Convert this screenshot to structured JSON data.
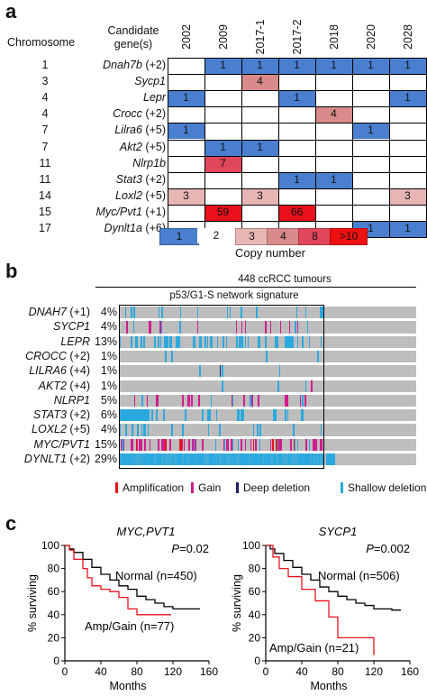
{
  "panel_a": {
    "label": "a",
    "chromosome_header": "Chromosome",
    "candidate_header": [
      "Candidate",
      "gene(s)"
    ],
    "samples": [
      "2002",
      "2009",
      "2017-1",
      "2017-2",
      "2018",
      "2020",
      "2028"
    ],
    "rows": [
      {
        "chrom": "1",
        "gene": "Dnah7b",
        "suffix": " (+2)",
        "cells": [
          null,
          "1",
          "1",
          "1",
          "1",
          "1",
          "1"
        ]
      },
      {
        "chrom": "3",
        "gene": "Sycp1",
        "suffix": "",
        "cells": [
          null,
          null,
          "4",
          null,
          null,
          null,
          null
        ]
      },
      {
        "chrom": "4",
        "gene": "Lepr",
        "suffix": "",
        "cells": [
          "1",
          null,
          null,
          "1",
          null,
          null,
          "1"
        ]
      },
      {
        "chrom": "4",
        "gene": "Crocc",
        "suffix": " (+2)",
        "cells": [
          null,
          null,
          null,
          null,
          "4",
          null,
          null
        ]
      },
      {
        "chrom": "7",
        "gene": "Lilra6",
        "suffix": " (+5)",
        "cells": [
          "1",
          null,
          null,
          null,
          null,
          "1",
          null
        ]
      },
      {
        "chrom": "7",
        "gene": "Akt2",
        "suffix": " (+5)",
        "cells": [
          null,
          "1",
          "1",
          null,
          null,
          null,
          null
        ]
      },
      {
        "chrom": "11",
        "gene": "Nlrp1b",
        "suffix": "",
        "cells": [
          null,
          "7",
          null,
          null,
          null,
          null,
          null
        ]
      },
      {
        "chrom": "11",
        "gene": "Stat3",
        "suffix": " (+2)",
        "cells": [
          null,
          null,
          null,
          "1",
          "1",
          null,
          null
        ]
      },
      {
        "chrom": "14",
        "gene": "Loxl2",
        "suffix": " (+5)",
        "cells": [
          "3",
          null,
          "3",
          null,
          null,
          null,
          "3"
        ]
      },
      {
        "chrom": "15",
        "gene": "Myc/Pvt1",
        "suffix": " (+1)",
        "cells": [
          null,
          "59",
          null,
          "66",
          null,
          null,
          null
        ]
      },
      {
        "chrom": "17",
        "gene": "Dynlt1a",
        "suffix": " (+6)",
        "cells": [
          null,
          null,
          null,
          null,
          null,
          "1",
          "1"
        ]
      }
    ],
    "legend": [
      "1",
      "2",
      "3",
      "4",
      "8",
      ">10"
    ],
    "legend_title": "Copy number",
    "colors": {
      "1": "#4a7fcf",
      "2": "#ffffff",
      "3": "#e8b5b5",
      "4": "#d98a8a",
      "7": "#e0465c",
      "8": "#e0465c",
      "59": "#e8111b",
      "66": "#e8111b",
      ">10": "#ee1111"
    }
  },
  "panel_b": {
    "label": "b",
    "cohort": "448 ccRCC tumours",
    "signature": "p53/G1-S network signature",
    "rows": [
      {
        "gene": "DNAH7",
        "suffix": " (+1)",
        "pct": "4%"
      },
      {
        "gene": "SYCP1",
        "suffix": "",
        "pct": "4%"
      },
      {
        "gene": "LEPR",
        "suffix": "",
        "pct": "13%"
      },
      {
        "gene": "CROCC",
        "suffix": " (+2)",
        "pct": "1%"
      },
      {
        "gene": "LILRA6",
        "suffix": " (+4)",
        "pct": "1%"
      },
      {
        "gene": "AKT2",
        "suffix": " (+4)",
        "pct": "1%"
      },
      {
        "gene": "NLRP1",
        "suffix": "",
        "pct": "5%"
      },
      {
        "gene": "STAT3",
        "suffix": " (+2)",
        "pct": "6%"
      },
      {
        "gene": "LOXL2",
        "suffix": " (+5)",
        "pct": "4%"
      },
      {
        "gene": "MYC/PVT1",
        "suffix": "",
        "pct": "15%"
      },
      {
        "gene": "DYNLT1",
        "suffix": " (+2)",
        "pct": "29%"
      }
    ],
    "legend": [
      {
        "label": "Amplification",
        "color": "#e8111b"
      },
      {
        "label": "Gain",
        "color": "#d21c8c"
      },
      {
        "label": "Deep deletion",
        "color": "#1d1b6b"
      },
      {
        "label": "Shallow deletion",
        "color": "#29a9df"
      }
    ],
    "colors": {
      "background": "#bdbdbd",
      "gain": "#d21c8c",
      "shallow": "#29a9df",
      "deep": "#1d1b6b",
      "amp": "#e8111b"
    }
  },
  "panel_c": {
    "label": "c",
    "ylabel": "% surviving",
    "xlabel": "Months",
    "plots": [
      {
        "title": "MYC,PVT1",
        "p_label": "P",
        "p_value": "=0.02",
        "normal_label": "Normal (n=450)",
        "amp_label": "Amp/Gain (n=77)"
      },
      {
        "title": "SYCP1",
        "p_label": "P",
        "p_value": "=0.002",
        "normal_label": "Normal (n=506)",
        "amp_label": "Amp/Gain (n=21)"
      }
    ]
  },
  "chart_data": [
    {
      "type": "line",
      "title": "MYC,PVT1",
      "xlabel": "Months",
      "ylabel": "% surviving",
      "xlim": [
        0,
        160
      ],
      "ylim": [
        0,
        100
      ],
      "xticks": [
        0,
        40,
        80,
        120,
        160
      ],
      "yticks": [
        0,
        20,
        40,
        60,
        80,
        100
      ],
      "series": [
        {
          "name": "Normal (n=450)",
          "color": "#000000",
          "x": [
            0,
            5,
            10,
            20,
            30,
            40,
            50,
            60,
            70,
            80,
            90,
            100,
            110,
            120,
            140,
            150
          ],
          "y": [
            100,
            97,
            94,
            88,
            81,
            75,
            70,
            65,
            62,
            56,
            53,
            50,
            47,
            45,
            45,
            45
          ]
        },
        {
          "name": "Amp/Gain (n=77)",
          "color": "#e8111b",
          "x": [
            0,
            5,
            10,
            20,
            25,
            30,
            40,
            50,
            60,
            70,
            80,
            90,
            100,
            110,
            118
          ],
          "y": [
            100,
            96,
            88,
            80,
            72,
            65,
            62,
            60,
            55,
            45,
            40,
            40,
            40,
            40,
            40
          ]
        }
      ]
    },
    {
      "type": "line",
      "title": "SYCP1",
      "xlabel": "Months",
      "ylabel": "% surviving",
      "xlim": [
        0,
        160
      ],
      "ylim": [
        0,
        100
      ],
      "xticks": [
        0,
        40,
        80,
        120,
        160
      ],
      "yticks": [
        0,
        20,
        40,
        60,
        80,
        100
      ],
      "series": [
        {
          "name": "Normal (n=506)",
          "color": "#000000",
          "x": [
            0,
            5,
            10,
            20,
            30,
            40,
            50,
            60,
            70,
            80,
            90,
            100,
            110,
            120,
            140,
            150
          ],
          "y": [
            100,
            97,
            93,
            87,
            81,
            75,
            70,
            64,
            60,
            56,
            53,
            50,
            48,
            45,
            44,
            44
          ]
        },
        {
          "name": "Amp/Gain (n=21)",
          "color": "#e8111b",
          "x": [
            0,
            8,
            15,
            25,
            40,
            55,
            70,
            80,
            100,
            110,
            120
          ],
          "y": [
            100,
            90,
            80,
            73,
            62,
            52,
            38,
            20,
            20,
            20,
            5
          ]
        }
      ]
    }
  ]
}
